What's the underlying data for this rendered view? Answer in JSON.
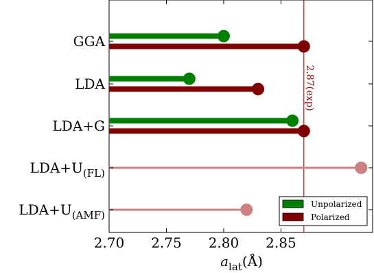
{
  "chart_data": {
    "type": "bar",
    "orientation": "horizontal",
    "style": "lollipop",
    "categories": [
      "GGA",
      "LDA",
      "LDA+G",
      "LDA+U_(FL)",
      "LDA+U_(AMF)"
    ],
    "category_labels": [
      {
        "main": "GGA",
        "sub": ""
      },
      {
        "main": "LDA",
        "sub": ""
      },
      {
        "main": "LDA+G",
        "sub": ""
      },
      {
        "main": "LDA+U",
        "sub": "(FL)"
      },
      {
        "main": "LDA+U",
        "sub": "(AMF)"
      }
    ],
    "series": [
      {
        "name": "Unpolarized",
        "color": "#008000",
        "values": [
          2.8,
          2.77,
          2.86,
          null,
          null
        ]
      },
      {
        "name": "Polarized",
        "color": "#800000",
        "values": [
          2.87,
          2.83,
          2.87,
          null,
          null
        ]
      }
    ],
    "extra_series": [
      {
        "name": "",
        "color": "#cd8080",
        "values": [
          null,
          null,
          null,
          2.92,
          2.82
        ]
      }
    ],
    "xlabel": {
      "main": "a",
      "sub": "lat",
      "unit": "(Å)"
    },
    "xticks": [
      "2.70",
      "2.75",
      "2.80",
      "2.85"
    ],
    "xtick_values": [
      2.7,
      2.75,
      2.8,
      2.85
    ],
    "xlim": [
      2.7,
      2.93
    ],
    "reference_line": {
      "value": 2.87,
      "label": "2.87(exp)",
      "color": "#800000"
    },
    "legend": {
      "position": "lower-right",
      "entries": [
        "Unpolarized",
        "Polarized"
      ]
    },
    "grid": false
  }
}
